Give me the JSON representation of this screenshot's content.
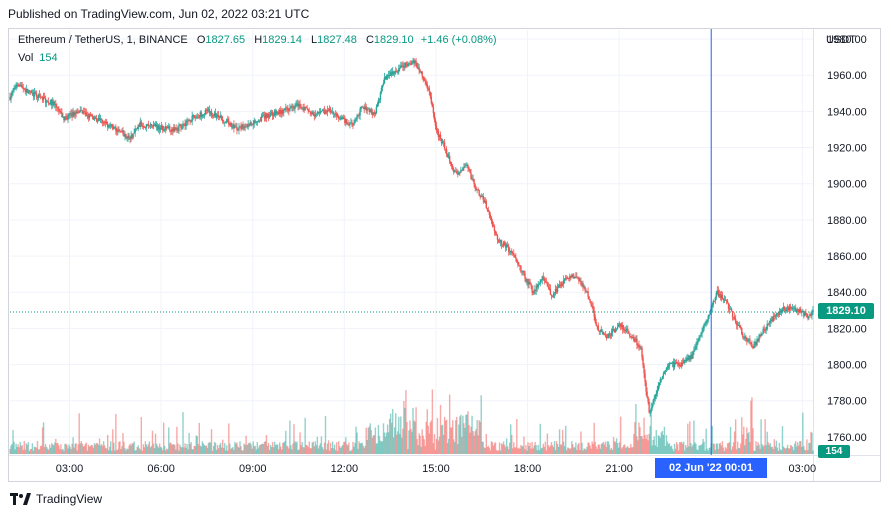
{
  "header": {
    "published": "Published on TradingView.com, Jun 02, 2022 03:21 UTC"
  },
  "legend": {
    "symbol": "Ethereum / TetherUS, 1, BINANCE",
    "open_label": "O",
    "open": "1827.65",
    "high_label": "H",
    "high": "1829.14",
    "low_label": "L",
    "low": "1827.48",
    "close_label": "C",
    "close": "1829.10",
    "change": "+1.46 (+0.08%)",
    "vol_label": "Vol",
    "vol": "154"
  },
  "axis": {
    "currency": "USDT"
  },
  "price_tag": "1829.10",
  "vol_tag": "154",
  "crosshair_time": "02 Jun '22   00:01",
  "footer": {
    "brand": "TradingView"
  },
  "colors": {
    "up": "#26a69a",
    "down": "#ef5350",
    "price_line": "#089981",
    "crosshair": "#2962ff"
  },
  "chart_data": {
    "type": "candlestick",
    "symbol": "Ethereum / TetherUS",
    "interval": "1",
    "exchange": "BINANCE",
    "y_ticks": [
      1760,
      1780,
      1800,
      1820,
      1840,
      1860,
      1880,
      1900,
      1920,
      1940,
      1960,
      1980
    ],
    "ylim": [
      1750,
      1985
    ],
    "x_ticks": [
      "03:00",
      "06:00",
      "09:00",
      "12:00",
      "15:00",
      "18:00",
      "21:00",
      "",
      "03:00"
    ],
    "x_hours": [
      27,
      30,
      33,
      36,
      39,
      42,
      45,
      48,
      51
    ],
    "xlim_hours": [
      25.05,
      51.35
    ],
    "last_price": 1829.1,
    "crosshair_hour": 48.017,
    "price_path": [
      [
        25.05,
        1948
      ],
      [
        25.3,
        1956
      ],
      [
        25.6,
        1951
      ],
      [
        26.0,
        1948
      ],
      [
        26.5,
        1944
      ],
      [
        26.8,
        1936
      ],
      [
        27.3,
        1940
      ],
      [
        28.0,
        1935
      ],
      [
        28.5,
        1930
      ],
      [
        29.0,
        1925
      ],
      [
        29.3,
        1933
      ],
      [
        30.0,
        1931
      ],
      [
        30.5,
        1930
      ],
      [
        31.0,
        1936
      ],
      [
        31.5,
        1940
      ],
      [
        32.0,
        1936
      ],
      [
        32.5,
        1930
      ],
      [
        33.0,
        1934
      ],
      [
        33.5,
        1938
      ],
      [
        34.0,
        1940
      ],
      [
        34.5,
        1944
      ],
      [
        35.0,
        1938
      ],
      [
        35.5,
        1941
      ],
      [
        36.0,
        1935
      ],
      [
        36.3,
        1932
      ],
      [
        36.6,
        1943
      ],
      [
        37.0,
        1938
      ],
      [
        37.3,
        1958
      ],
      [
        37.7,
        1962
      ],
      [
        38.0,
        1966
      ],
      [
        38.3,
        1968
      ],
      [
        38.5,
        1962
      ],
      [
        38.8,
        1950
      ],
      [
        39.0,
        1930
      ],
      [
        39.3,
        1920
      ],
      [
        39.6,
        1905
      ],
      [
        40.0,
        1910
      ],
      [
        40.3,
        1898
      ],
      [
        40.6,
        1890
      ],
      [
        41.0,
        1870
      ],
      [
        41.5,
        1862
      ],
      [
        41.8,
        1852
      ],
      [
        42.2,
        1840
      ],
      [
        42.5,
        1848
      ],
      [
        42.8,
        1838
      ],
      [
        43.2,
        1846
      ],
      [
        43.6,
        1850
      ],
      [
        44.0,
        1838
      ],
      [
        44.3,
        1820
      ],
      [
        44.6,
        1815
      ],
      [
        45.0,
        1822
      ],
      [
        45.3,
        1818
      ],
      [
        45.7,
        1810
      ],
      [
        45.85,
        1790
      ],
      [
        46.0,
        1773
      ],
      [
        46.3,
        1790
      ],
      [
        46.6,
        1800
      ],
      [
        47.0,
        1800
      ],
      [
        47.4,
        1805
      ],
      [
        47.7,
        1818
      ],
      [
        47.9,
        1825
      ],
      [
        48.2,
        1840
      ],
      [
        48.5,
        1835
      ],
      [
        48.8,
        1825
      ],
      [
        49.1,
        1815
      ],
      [
        49.4,
        1810
      ],
      [
        49.7,
        1818
      ],
      [
        50.0,
        1825
      ],
      [
        50.3,
        1830
      ],
      [
        50.6,
        1832
      ],
      [
        50.9,
        1830
      ],
      [
        51.2,
        1826
      ],
      [
        51.35,
        1829.1
      ]
    ]
  }
}
